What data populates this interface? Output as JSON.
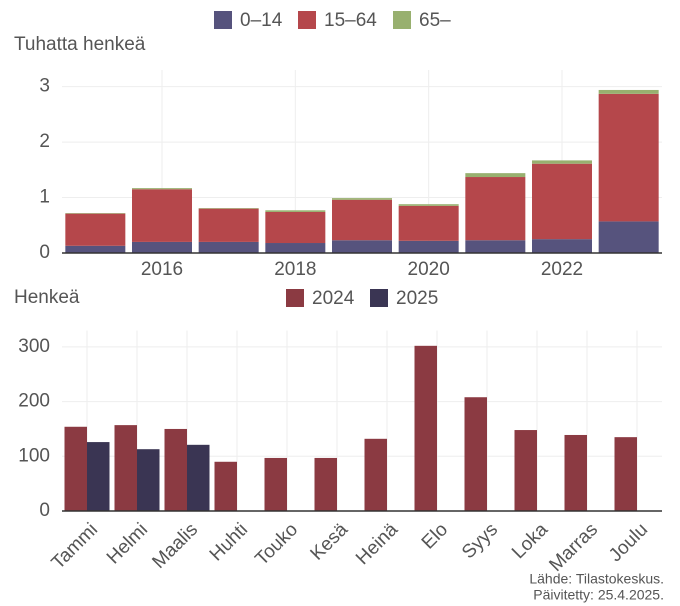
{
  "chart_data": [
    {
      "type": "stacked-bar",
      "y_label": "Tuhatta henkeä",
      "x": [
        2015,
        2016,
        2017,
        2018,
        2019,
        2020,
        2021,
        2022,
        2023
      ],
      "xlim": [
        2014.5,
        2023.5
      ],
      "xticks": [
        2016,
        2018,
        2020,
        2022
      ],
      "ylim": [
        0,
        3.3
      ],
      "yticks": [
        0,
        1,
        2,
        3
      ],
      "grid": true,
      "legend": "top",
      "series": [
        {
          "name": "0–14",
          "color": "#56537d",
          "values": [
            0.13,
            0.2,
            0.2,
            0.18,
            0.23,
            0.22,
            0.23,
            0.25,
            0.57
          ]
        },
        {
          "name": "15–64",
          "color": "#b5474b",
          "values": [
            0.58,
            0.95,
            0.6,
            0.56,
            0.73,
            0.63,
            1.14,
            1.36,
            2.3
          ]
        },
        {
          "name": "65–",
          "color": "#98b06f",
          "values": [
            0.01,
            0.02,
            0.01,
            0.03,
            0.03,
            0.03,
            0.07,
            0.06,
            0.07
          ]
        }
      ]
    },
    {
      "type": "bar",
      "y_label": "Henkeä",
      "categories": [
        "Tammi",
        "Helmi",
        "Maalis",
        "Huhti",
        "Touko",
        "Kesä",
        "Heinä",
        "Elo",
        "Syys",
        "Loka",
        "Marras",
        "Joulu"
      ],
      "ylim": [
        0,
        330
      ],
      "yticks": [
        0,
        100,
        200,
        300
      ],
      "grid": true,
      "legend": "top",
      "series": [
        {
          "name": "2024",
          "color": "#8b3a42",
          "values": [
            154,
            157,
            150,
            90,
            97,
            97,
            132,
            302,
            208,
            148,
            139,
            135
          ]
        },
        {
          "name": "2025",
          "color": "#3a3553",
          "values": [
            126,
            113,
            121,
            null,
            null,
            null,
            null,
            null,
            null,
            null,
            null,
            null
          ]
        }
      ]
    }
  ],
  "footer": [
    "Lähde: Tilastokeskus.",
    "Päivitetty: 25.4.2025."
  ]
}
